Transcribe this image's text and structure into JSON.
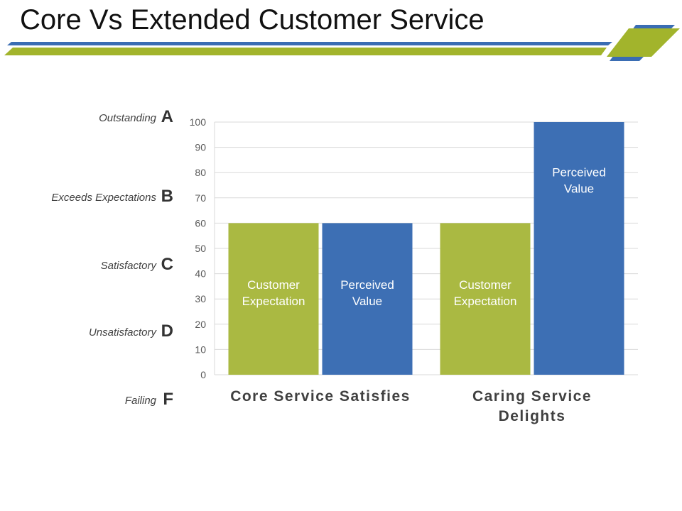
{
  "slide": {
    "title": "Core Vs Extended Customer Service"
  },
  "colors": {
    "green": "#a2b42c",
    "blue": "#3a6db3",
    "bar_green": "#aab942",
    "bar_blue": "#3d6fb4",
    "grid": "#d9d9d9"
  },
  "grades": [
    {
      "name": "Outstanding",
      "letter": "A"
    },
    {
      "name": "Exceeds Expectations",
      "letter": "B"
    },
    {
      "name": "Satisfactory",
      "letter": "C"
    },
    {
      "name": "Unsatisfactory",
      "letter": "D"
    },
    {
      "name": "Failing",
      "letter": "F"
    }
  ],
  "chart_data": {
    "type": "bar",
    "categories": [
      {
        "lines": [
          "Core Service Satisfies"
        ]
      },
      {
        "lines": [
          "Caring Service",
          "Delights"
        ]
      }
    ],
    "series": [
      {
        "name": "Customer Expectation",
        "label_lines": [
          "Customer",
          "Expectation"
        ],
        "values": [
          60,
          60
        ]
      },
      {
        "name": "Perceived Value",
        "label_lines": [
          "Perceived",
          "Value"
        ],
        "values": [
          60,
          100
        ]
      }
    ],
    "yticks": [
      0,
      10,
      20,
      30,
      40,
      50,
      60,
      70,
      80,
      90,
      100
    ],
    "ylim": [
      0,
      100
    ],
    "grid": true
  }
}
